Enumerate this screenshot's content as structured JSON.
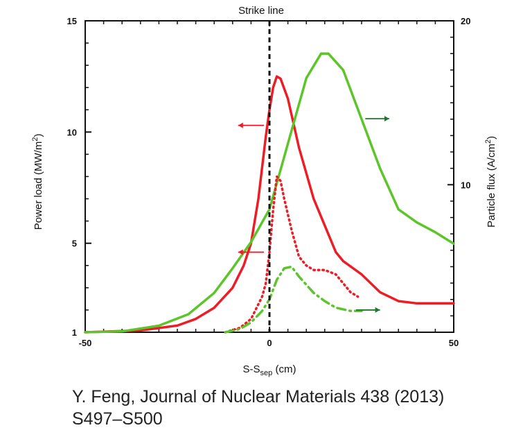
{
  "chart_data": {
    "type": "line",
    "title": "Strike line",
    "xlabel": "S-S",
    "xlabel_sub": "sep",
    "xlabel_unit": " (cm)",
    "ylabel_left": "Power load  (MW/m",
    "ylabel_left_sup": "2",
    "ylabel_left_end": ")",
    "ylabel_right": "Particle flux  (A/cm",
    "ylabel_right_sup": "2",
    "ylabel_right_end": ")",
    "xlim": [
      -50,
      50
    ],
    "ylim_left": [
      1,
      15
    ],
    "ylim_right": [
      1,
      20
    ],
    "x_ticks": [
      {
        "v": -50,
        "label": "-50"
      },
      {
        "v": 0,
        "label": "0"
      },
      {
        "v": 50,
        "label": "50"
      }
    ],
    "y_left_ticks": [
      {
        "v": 1,
        "label": "1"
      },
      {
        "v": 5,
        "label": "5"
      },
      {
        "v": 10,
        "label": "10"
      },
      {
        "v": 15,
        "label": "15"
      }
    ],
    "y_right_ticks": [
      {
        "v": 10,
        "label": "10"
      },
      {
        "v": 20,
        "label": "20"
      }
    ],
    "strike_line_x": 0,
    "colors": {
      "red": "#ee1c24",
      "green": "#5cc52a",
      "dark_green": "#1a7a2a",
      "axis": "#111111"
    },
    "series": [
      {
        "axis": "left",
        "color": "#ee1c24",
        "style": "solid",
        "x": [
          -50,
          -35,
          -25,
          -20,
          -15,
          -10,
          -7,
          -5,
          -3,
          -1,
          0,
          1,
          2,
          3,
          5,
          8,
          12,
          15,
          18,
          20,
          25,
          30,
          35,
          40,
          45,
          50
        ],
        "y": [
          1.0,
          1.08,
          1.3,
          1.6,
          2.1,
          3.0,
          4.0,
          5.0,
          7.0,
          9.8,
          11.0,
          12.0,
          12.5,
          12.4,
          11.5,
          9.3,
          7.0,
          5.8,
          4.6,
          4.2,
          3.6,
          2.8,
          2.4,
          2.3,
          2.3,
          2.3
        ]
      },
      {
        "axis": "right",
        "color": "#5cc52a",
        "style": "solid",
        "x": [
          -50,
          -40,
          -30,
          -22,
          -15,
          -10,
          -5,
          0,
          5,
          10,
          14,
          16,
          20,
          25,
          30,
          35,
          40,
          45,
          50
        ],
        "y": [
          1.0,
          1.05,
          1.4,
          2.1,
          3.4,
          4.9,
          6.5,
          8.5,
          12.5,
          16.5,
          18.0,
          18.0,
          17.0,
          14.0,
          11.0,
          8.5,
          7.7,
          7.1,
          6.4
        ]
      },
      {
        "axis": "left",
        "color": "#ee1c24",
        "style": "dotted",
        "x": [
          -12,
          -8,
          -5,
          -2,
          -1,
          0,
          1,
          2,
          3,
          4,
          6,
          8,
          10,
          12,
          15,
          18,
          20,
          22,
          24
        ],
        "y": [
          1.0,
          1.2,
          1.6,
          2.6,
          3.2,
          4.6,
          6.5,
          8.0,
          7.8,
          7.0,
          5.6,
          4.4,
          4.0,
          3.8,
          3.8,
          3.6,
          3.2,
          2.8,
          2.6
        ]
      },
      {
        "axis": "right",
        "color": "#5cc52a",
        "style": "dashdot",
        "x": [
          -12,
          -8,
          -5,
          -2,
          0,
          2,
          4,
          6,
          8,
          10,
          12,
          15,
          18,
          22,
          25
        ],
        "y": [
          1.0,
          1.2,
          1.6,
          2.3,
          3.0,
          4.2,
          4.9,
          5.0,
          4.4,
          3.9,
          3.4,
          2.9,
          2.5,
          2.3,
          2.3
        ]
      }
    ],
    "arrows": [
      {
        "axis": "left",
        "x_from": -1.5,
        "x_to": -8.5,
        "y": 10.3,
        "color": "#ee1c24"
      },
      {
        "axis": "left",
        "x_from": -1.5,
        "x_to": -8.5,
        "y": 4.6,
        "color": "#ee1c24"
      },
      {
        "axis": "left",
        "x_from": 26,
        "x_to": 32.5,
        "y": 10.6,
        "color": "#1a7a2a"
      },
      {
        "axis": "left",
        "x_from": 23.5,
        "x_to": 30,
        "y": 2.0,
        "color": "#1a7a2a"
      }
    ]
  },
  "citation": {
    "line1": "Y. Feng, Journal of Nuclear Materials 438 (2013)",
    "line2": "S497–S500"
  }
}
